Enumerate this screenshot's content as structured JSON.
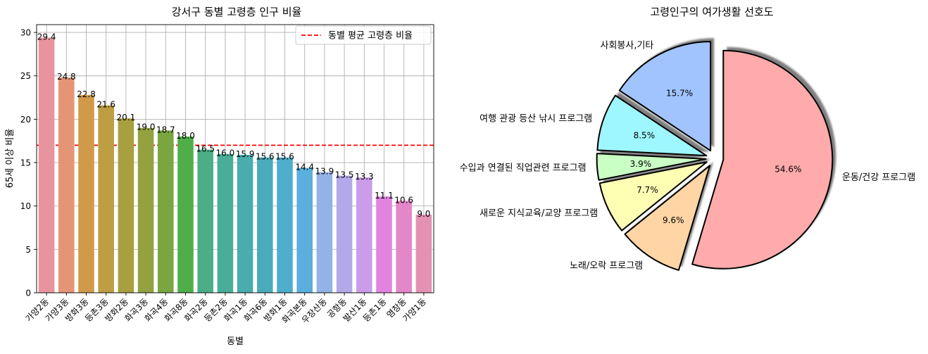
{
  "chart_data": [
    {
      "type": "bar",
      "title": "강서구 동별 고령층 인구 비율",
      "xlabel": "동별",
      "ylabel": "65세 이상 비율",
      "ylim": [
        0,
        30.9
      ],
      "yticks": [
        0,
        5,
        10,
        15,
        20,
        25,
        30
      ],
      "grid": true,
      "legend": {
        "location": "top-right",
        "entries": [
          {
            "label": "동별 평균 고령층 비율",
            "style": "red dashed line"
          }
        ]
      },
      "reference_line": {
        "value": 17.0,
        "color": "#ff0000"
      },
      "categories": [
        "가양2동",
        "가양3동",
        "방화3동",
        "등촌3동",
        "방화2동",
        "화곡3동",
        "화곡4동",
        "화곡8동",
        "화곡2동",
        "등촌2동",
        "화곡1동",
        "화곡6동",
        "방화1동",
        "화곡본동",
        "우장산동",
        "공항동",
        "발산1동",
        "등촌1동",
        "염창동",
        "가양1동"
      ],
      "values": [
        29.4,
        24.8,
        22.8,
        21.6,
        20.1,
        19.0,
        18.7,
        18.0,
        16.5,
        16.0,
        15.9,
        15.6,
        15.6,
        14.4,
        13.9,
        13.5,
        13.3,
        11.1,
        10.6,
        9.0
      ],
      "labels": [
        "29.4",
        "24.8",
        "22.8",
        "21.6",
        "20.1",
        "19.0",
        "18.7",
        "18.0",
        "16.5",
        "16.0",
        "15.9",
        "15.6",
        "15.6",
        "14.4",
        "13.9",
        "13.5",
        "13.3",
        "11.1",
        "10.6",
        "9.0"
      ],
      "colors": [
        "#e8949e",
        "#e59575",
        "#d19a4a",
        "#bd9e42",
        "#a89f3f",
        "#93a23f",
        "#7aa63f",
        "#4fae4a",
        "#4bae86",
        "#4aad98",
        "#4aacac",
        "#4aacba",
        "#4faecc",
        "#5aafdd",
        "#93b2e5",
        "#b3a9ea",
        "#cb9cea",
        "#e084e0",
        "#e387c8",
        "#e391b4"
      ]
    },
    {
      "type": "pie",
      "title": "고령인구의 여가생활 선호도",
      "slices": [
        {
          "label": "운동/건강 프로그램",
          "value": 54.6,
          "pct": "54.6%",
          "color": "#ffaaab"
        },
        {
          "label": "노래/오락 프로그램",
          "value": 9.6,
          "pct": "9.6%",
          "color": "#ffd5a5"
        },
        {
          "label": "새로운 지식교육/교양 프로그램",
          "value": 7.7,
          "pct": "7.7%",
          "color": "#ffffb4"
        },
        {
          "label": "수입과 연결된 직업관련 프로그램",
          "value": 3.9,
          "pct": "3.9%",
          "color": "#c9ffc4"
        },
        {
          "label": "여행 관광 등산 낚시 프로그램",
          "value": 8.5,
          "pct": "8.5%",
          "color": "#9ef7ff"
        },
        {
          "label": "사회봉사,기타",
          "value": 15.7,
          "pct": "15.7%",
          "color": "#a1c4ff"
        }
      ]
    }
  ]
}
